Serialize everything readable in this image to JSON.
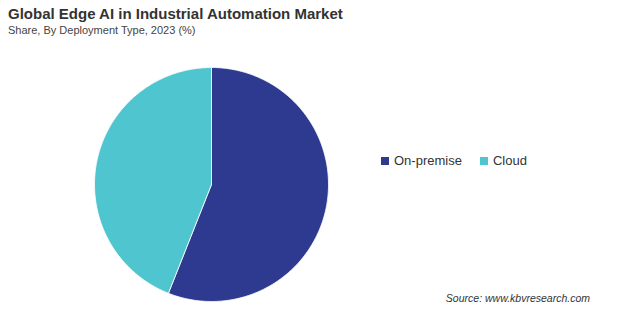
{
  "chart_data": {
    "type": "pie",
    "title": "Global Edge AI in Industrial Automation Market",
    "subtitle": "Share, By Deployment Type, 2023 (%)",
    "categories": [
      "On-premise",
      "Cloud"
    ],
    "values": [
      56,
      44
    ],
    "colors": [
      "#2e3a8f",
      "#4fc6cf"
    ],
    "legend": "right",
    "data_labels": false,
    "source": "Source: www.kbvresearch.com"
  }
}
